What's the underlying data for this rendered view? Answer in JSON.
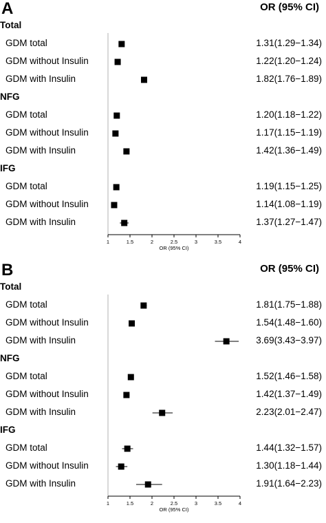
{
  "chart_data": [
    {
      "type": "forest",
      "panel_label": "A",
      "header": "OR (95% CI)",
      "xlabel": "OR (95% CI)",
      "xlim": [
        1,
        4
      ],
      "ticks": [
        "1",
        "1.5",
        "2",
        "2.5",
        "3",
        "3.5",
        "4"
      ],
      "groups": [
        {
          "name": "Total",
          "rows": [
            {
              "label": "GDM total",
              "or": 1.31,
              "lo": 1.29,
              "hi": 1.34,
              "text": "1.31(1.29−1.34)"
            },
            {
              "label": "GDM without Insulin",
              "or": 1.22,
              "lo": 1.2,
              "hi": 1.24,
              "text": "1.22(1.20−1.24)"
            },
            {
              "label": "GDM with Insulin",
              "or": 1.82,
              "lo": 1.76,
              "hi": 1.89,
              "text": "1.82(1.76−1.89)"
            }
          ]
        },
        {
          "name": "NFG",
          "rows": [
            {
              "label": "GDM total",
              "or": 1.2,
              "lo": 1.18,
              "hi": 1.22,
              "text": "1.20(1.18−1.22)"
            },
            {
              "label": "GDM without Insulin",
              "or": 1.17,
              "lo": 1.15,
              "hi": 1.19,
              "text": "1.17(1.15−1.19)"
            },
            {
              "label": "GDM with Insulin",
              "or": 1.42,
              "lo": 1.36,
              "hi": 1.49,
              "text": "1.42(1.36−1.49)"
            }
          ]
        },
        {
          "name": "IFG",
          "rows": [
            {
              "label": "GDM total",
              "or": 1.19,
              "lo": 1.15,
              "hi": 1.25,
              "text": "1.19(1.15−1.25)"
            },
            {
              "label": "GDM without Insulin",
              "or": 1.14,
              "lo": 1.08,
              "hi": 1.19,
              "text": "1.14(1.08−1.19)"
            },
            {
              "label": "GDM with Insulin",
              "or": 1.37,
              "lo": 1.27,
              "hi": 1.47,
              "text": "1.37(1.27−1.47)"
            }
          ]
        }
      ]
    },
    {
      "type": "forest",
      "panel_label": "B",
      "header": "OR (95% CI)",
      "xlabel": "OR (95% CI)",
      "xlim": [
        1,
        4
      ],
      "ticks": [
        "1",
        "1.5",
        "2",
        "2.5",
        "3",
        "3.5",
        "4"
      ],
      "groups": [
        {
          "name": "Total",
          "rows": [
            {
              "label": "GDM total",
              "or": 1.81,
              "lo": 1.75,
              "hi": 1.88,
              "text": "1.81(1.75−1.88)"
            },
            {
              "label": "GDM without Insulin",
              "or": 1.54,
              "lo": 1.48,
              "hi": 1.6,
              "text": "1.54(1.48−1.60)"
            },
            {
              "label": "GDM with Insulin",
              "or": 3.69,
              "lo": 3.43,
              "hi": 3.97,
              "text": "3.69(3.43−3.97)"
            }
          ]
        },
        {
          "name": "NFG",
          "rows": [
            {
              "label": "GDM total",
              "or": 1.52,
              "lo": 1.46,
              "hi": 1.58,
              "text": "1.52(1.46−1.58)"
            },
            {
              "label": "GDM without Insulin",
              "or": 1.42,
              "lo": 1.37,
              "hi": 1.49,
              "text": "1.42(1.37−1.49)"
            },
            {
              "label": "GDM with Insulin",
              "or": 2.23,
              "lo": 2.01,
              "hi": 2.47,
              "text": "2.23(2.01−2.47)"
            }
          ]
        },
        {
          "name": "IFG",
          "rows": [
            {
              "label": "GDM total",
              "or": 1.44,
              "lo": 1.32,
              "hi": 1.57,
              "text": "1.44(1.32−1.57)"
            },
            {
              "label": "GDM without Insulin",
              "or": 1.3,
              "lo": 1.18,
              "hi": 1.44,
              "text": "1.30(1.18−1.44)"
            },
            {
              "label": "GDM with Insulin",
              "or": 1.91,
              "lo": 1.64,
              "hi": 2.23,
              "text": "1.91(1.64−2.23)"
            }
          ]
        }
      ]
    }
  ]
}
